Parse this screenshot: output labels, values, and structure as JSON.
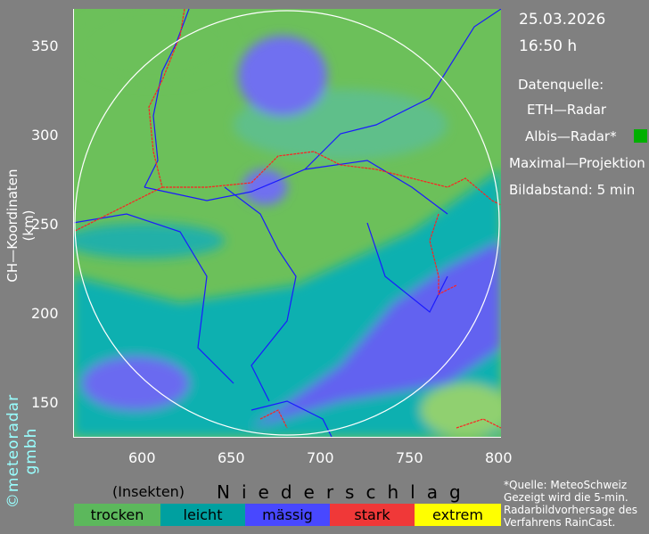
{
  "info": {
    "date": "25.03.2026",
    "time": "16:50 h",
    "source_label": "Datenquelle:",
    "source_1": "ETH—Radar",
    "source_2": "Albis—Radar*",
    "source_2_indicator_color": "#00b000",
    "projection": "Maximal—Projektion",
    "interval": "Bildabstand: 5 min"
  },
  "axes": {
    "y_label": "CH—Koordinaten (km)",
    "y_ticks": [
      "350",
      "300",
      "250",
      "200",
      "150"
    ],
    "x_ticks": [
      "600",
      "650",
      "700",
      "750",
      "800"
    ],
    "x_range_km": [
      560,
      800
    ],
    "y_range_km": [
      131,
      371
    ]
  },
  "brand": "©meteoradar gmbh",
  "legend": {
    "insects_label": "(Insekten)",
    "title": "Niederschlag",
    "items": [
      {
        "label": "trocken",
        "color": "#5cb85c"
      },
      {
        "label": "leicht",
        "color": "#00a0a0"
      },
      {
        "label": "mässig",
        "color": "#4848ff"
      },
      {
        "label": "stark",
        "color": "#f03838"
      },
      {
        "label": "extrem",
        "color": "#ffff00"
      }
    ]
  },
  "notes": [
    "*Quelle: MeteoSchweiz",
    "Gezeigt wird die 5-min.",
    "Radarbildvorhersage des",
    "Verfahrens RainCast."
  ]
}
